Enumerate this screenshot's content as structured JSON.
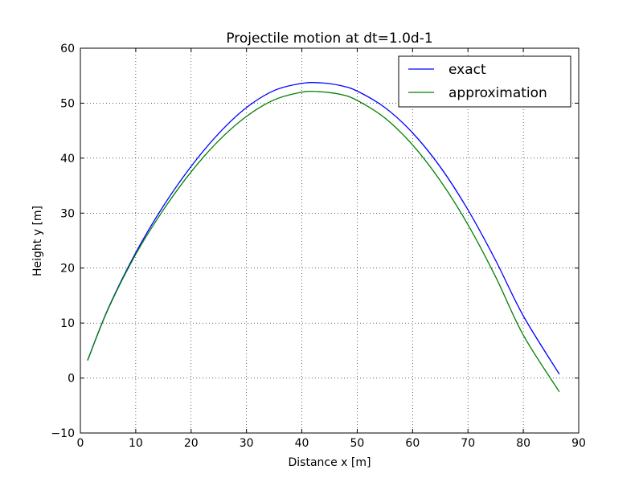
{
  "chart_data": {
    "type": "line",
    "title": "Projectile motion at dt=1.0d-1",
    "xlabel": "Distance x [m]",
    "ylabel": "Height y [m]",
    "xlim": [
      0,
      90
    ],
    "ylim": [
      -10,
      60
    ],
    "xticks": [
      0,
      10,
      20,
      30,
      40,
      50,
      60,
      70,
      80,
      90
    ],
    "yticks": [
      -10,
      0,
      10,
      20,
      30,
      40,
      50,
      60
    ],
    "xtick_labels": [
      "0",
      "10",
      "20",
      "30",
      "40",
      "50",
      "60",
      "70",
      "80",
      "90"
    ],
    "ytick_labels": [
      "−10",
      "0",
      "10",
      "20",
      "30",
      "40",
      "50",
      "60"
    ],
    "grid": true,
    "legend_position": "top-right",
    "series": [
      {
        "name": "exact",
        "color": "#0000ff",
        "x": [
          1.3,
          5,
          10,
          15,
          20,
          25,
          30,
          35,
          40,
          43.5,
          47,
          50,
          55,
          60,
          65,
          70,
          75,
          80,
          86.5
        ],
        "y": [
          3.2,
          12.6,
          22.8,
          31.3,
          38.5,
          44.5,
          49.2,
          52.3,
          53.6,
          53.7,
          53.2,
          52.2,
          49.2,
          44.6,
          38.4,
          30.6,
          21.4,
          11.3,
          0.7
        ]
      },
      {
        "name": "approximation",
        "color": "#008000",
        "x": [
          1.3,
          5,
          10,
          15,
          20,
          25,
          30,
          35,
          40,
          43,
          47,
          50,
          55,
          60,
          65,
          70,
          75,
          80,
          86.5
        ],
        "y": [
          3.2,
          12.5,
          22.5,
          30.6,
          37.5,
          43.2,
          47.6,
          50.6,
          52.0,
          52.1,
          51.6,
          50.5,
          47.3,
          42.4,
          35.9,
          27.9,
          18.4,
          7.8,
          -2.5
        ]
      }
    ]
  }
}
